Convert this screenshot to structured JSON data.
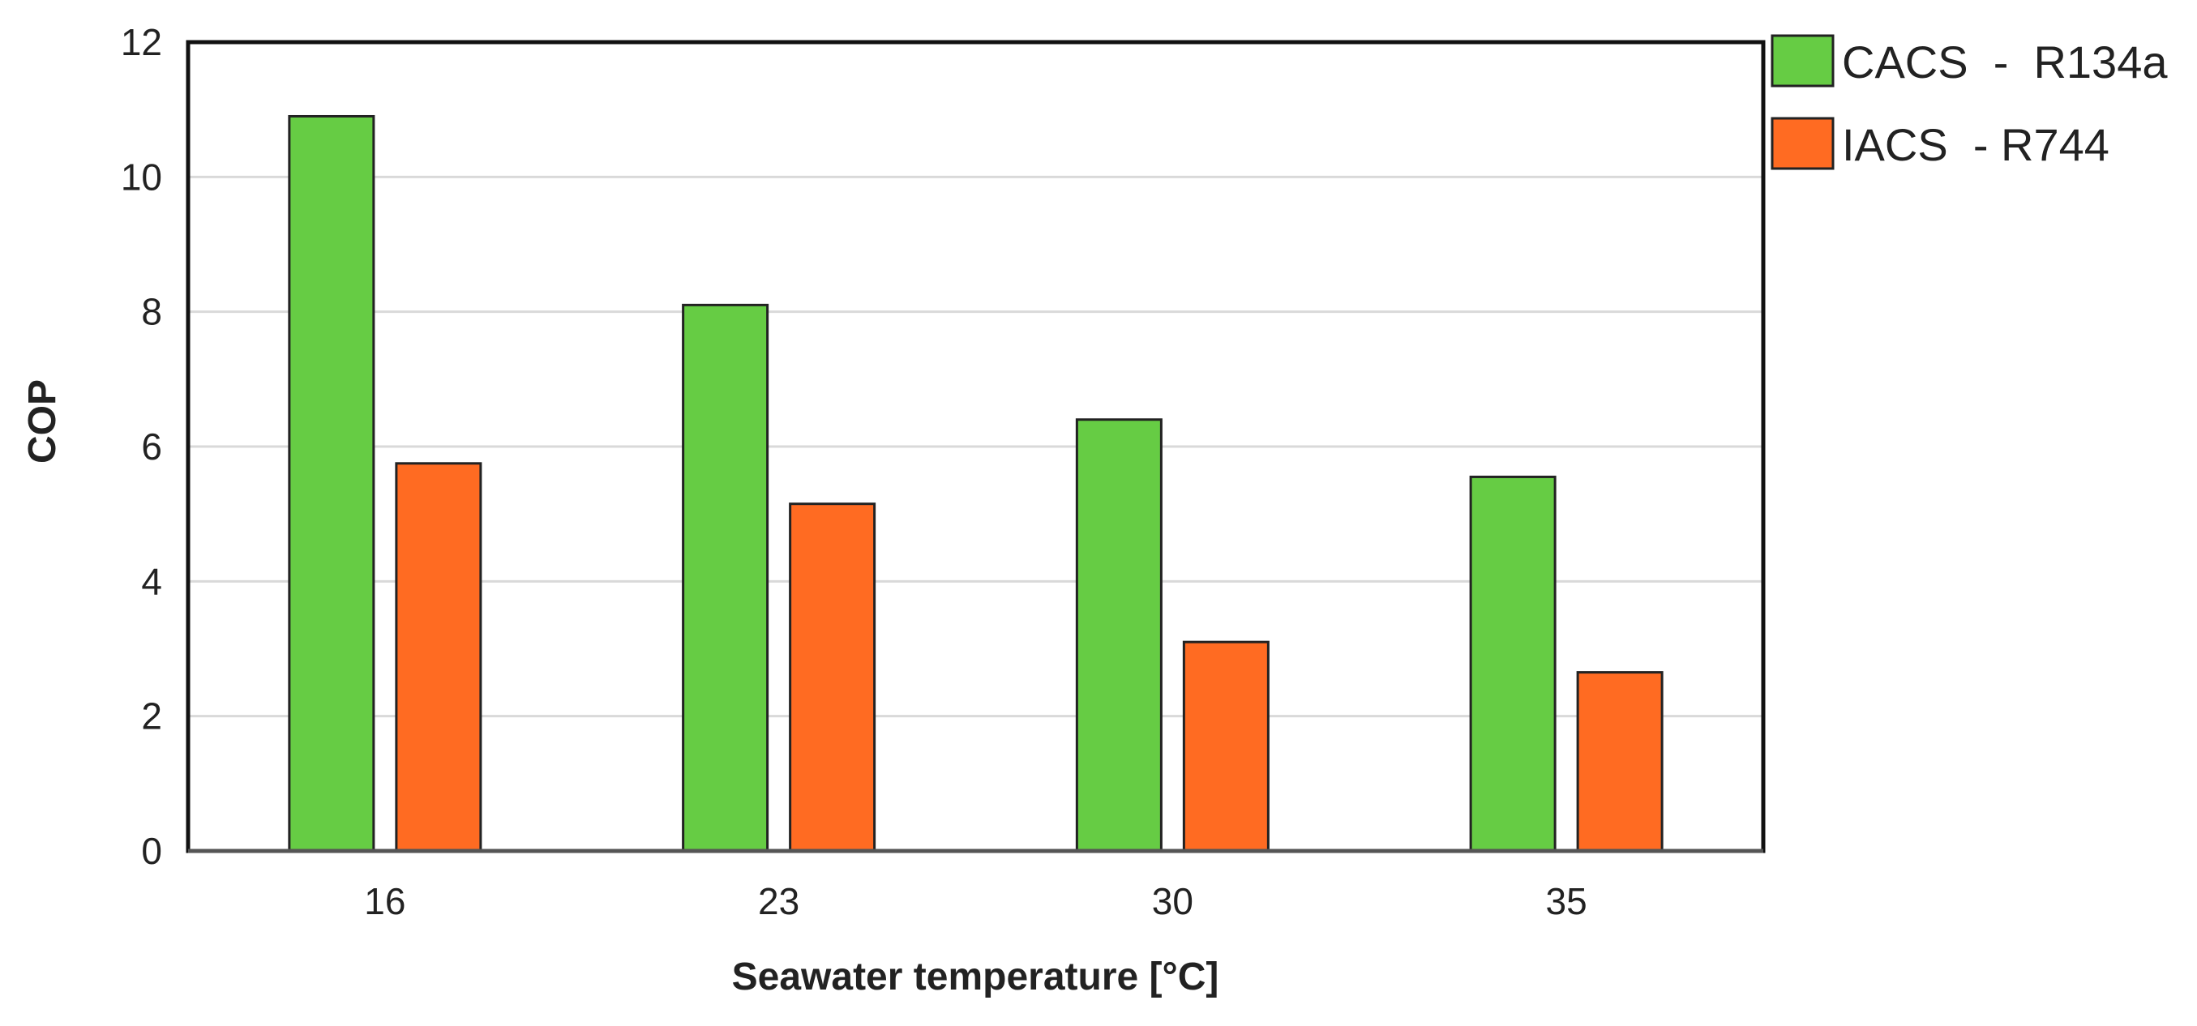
{
  "colors": {
    "background": "#ffffff",
    "series": [
      "#66cc44",
      "#ff6b22"
    ],
    "bar_outline": "#222222",
    "gridline": "#d9d9d9",
    "frame": "#111111"
  },
  "chart_data": {
    "type": "bar",
    "title": "",
    "xlabel": "Seawater temperature [°C]",
    "ylabel": "COP",
    "categories": [
      "16",
      "23",
      "30",
      "35"
    ],
    "series": [
      {
        "name": "CACS  -  R134a",
        "values": [
          10.9,
          8.1,
          6.4,
          5.55
        ]
      },
      {
        "name": "IACS  - R744",
        "values": [
          5.75,
          5.15,
          3.1,
          2.65
        ]
      }
    ],
    "ylim": [
      0,
      12
    ],
    "yticks": [
      0,
      2,
      4,
      6,
      8,
      10,
      12
    ],
    "grid": true,
    "legend": "right"
  }
}
